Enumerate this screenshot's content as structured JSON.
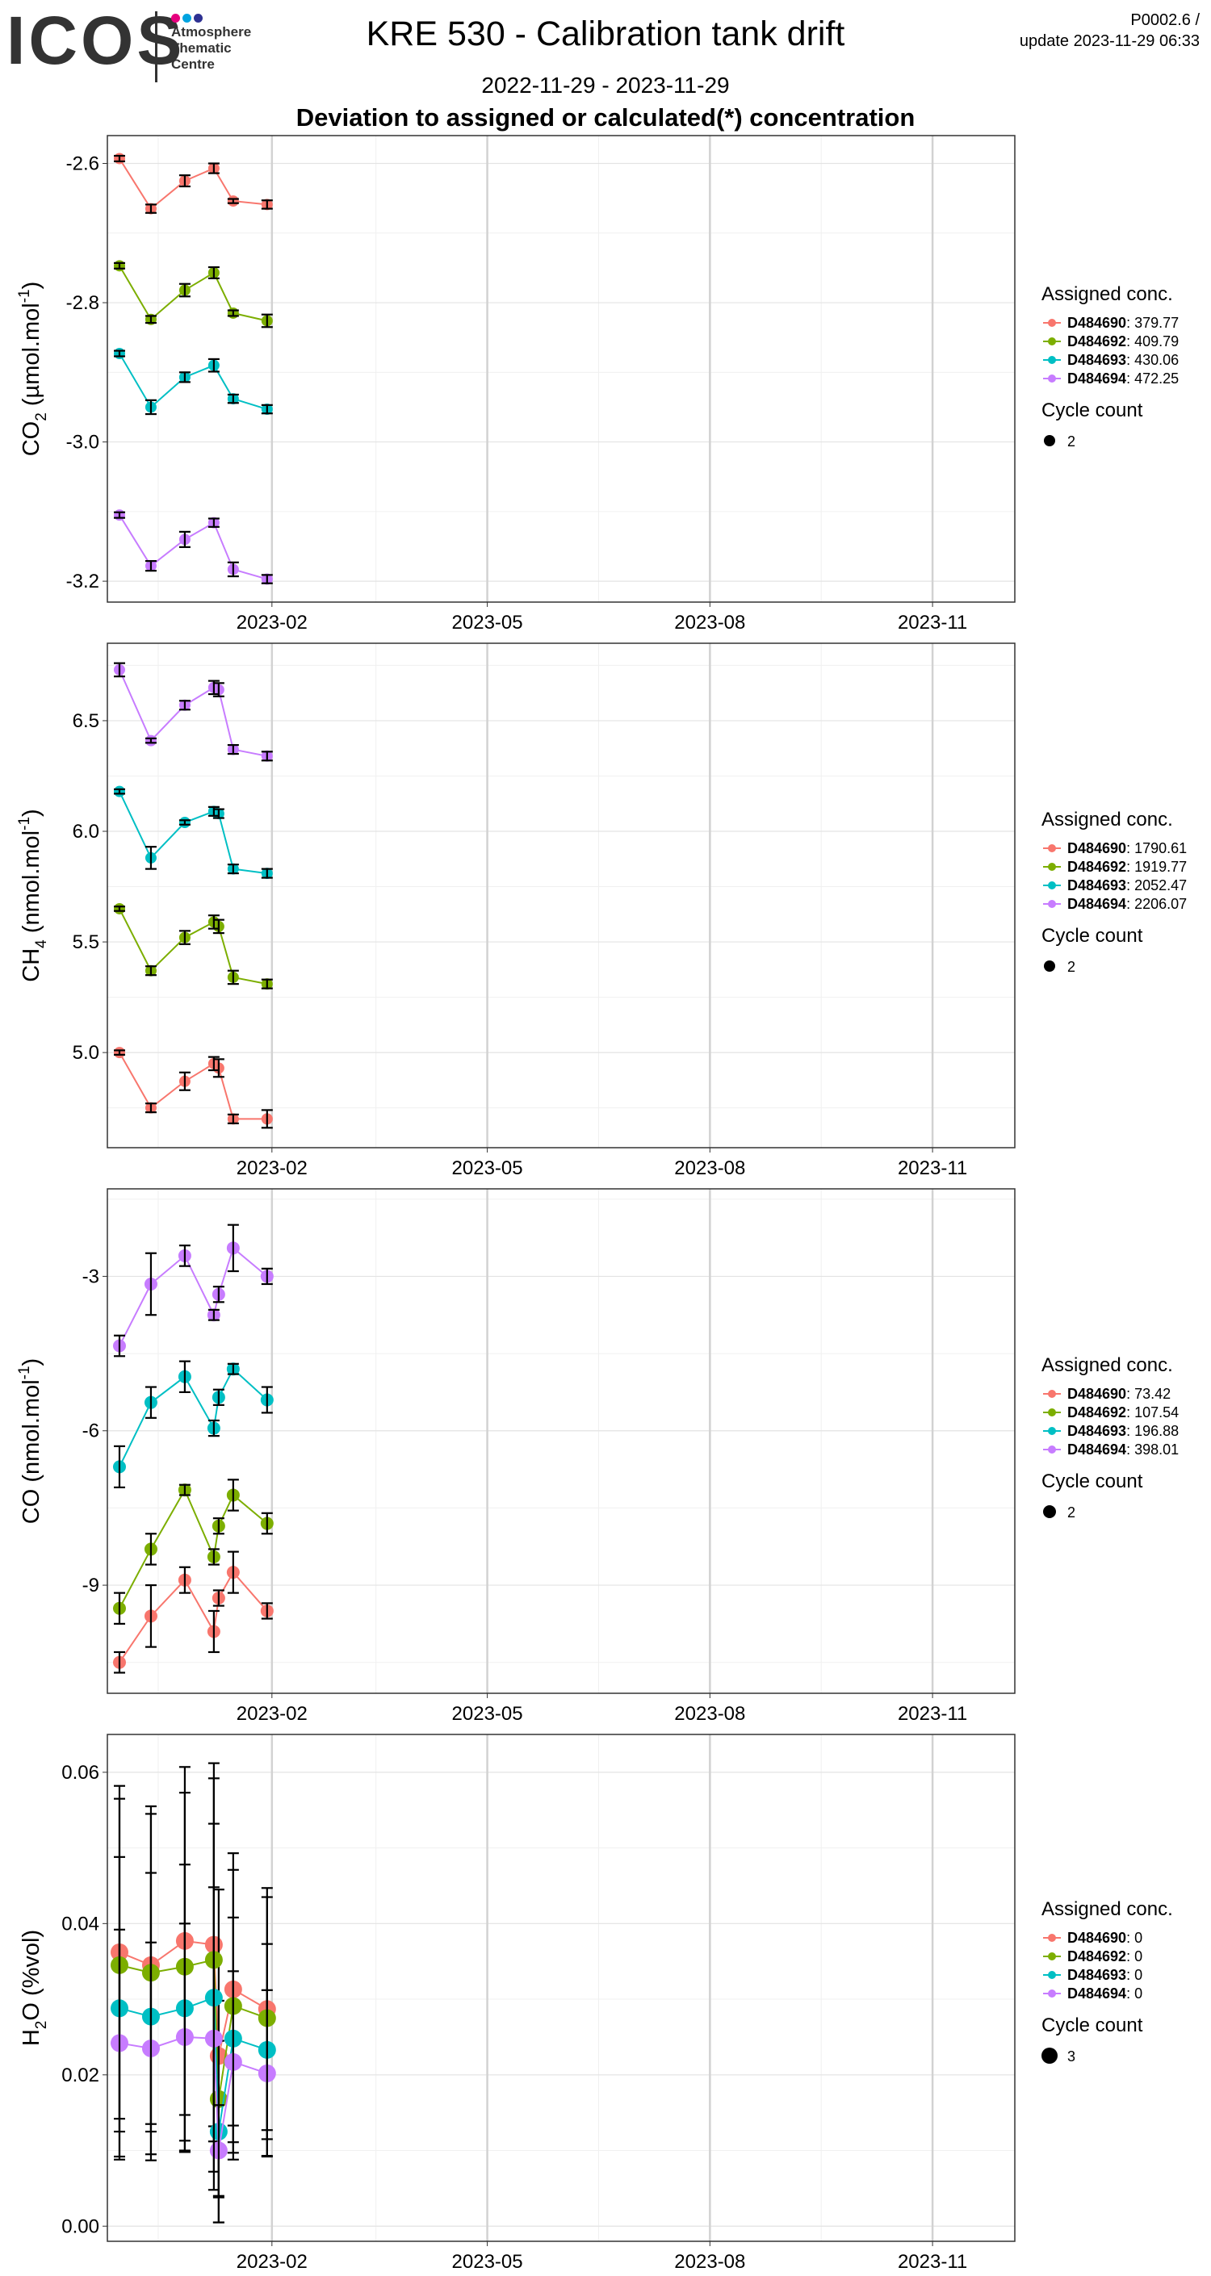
{
  "header": {
    "logo_text": "ICOS",
    "logo_sub": [
      "Atmosphere",
      "Thematic",
      "Centre"
    ],
    "version_line1": "P0002.6 /",
    "version_line2": "update  2023-11-29 06:33",
    "title": "KRE 530 - Calibration tank drift",
    "date_range": "2022-11-29 - 2023-11-29",
    "subtitle": "Deviation to assigned or calculated(*) concentration"
  },
  "colors": {
    "D484690": "#F8766D",
    "D484692": "#7CAE00",
    "D484693": "#00BFC4",
    "D484694": "#C77CFF",
    "logo_dots": [
      "#E6007E",
      "#00A3E0",
      "#2E3192"
    ]
  },
  "x_ticks": [
    "2023-02",
    "2023-05",
    "2023-08",
    "2023-11"
  ],
  "chart_data": [
    {
      "type": "line",
      "ylabel_main": "CO",
      "ylabel_sub": "2",
      "ylabel_unit": " (µmol.mol",
      "ylabel_sup": "-1",
      "ylabel_end": ")",
      "xlim": [
        "2022-11-25",
        "2023-12-05"
      ],
      "ylim": [
        -3.23,
        -2.56
      ],
      "y_ticks": [
        -3.2,
        -3.0,
        -2.8,
        -2.6
      ],
      "y_tick_labels": [
        "-3.2",
        "-3.0",
        "-2.8",
        "-2.6"
      ],
      "legend_title": "Assigned conc.",
      "cycle_title": "Cycle count",
      "cycle_value": "2",
      "series": [
        {
          "name": "D484690",
          "value": "379.77",
          "x": [
            "2022-11-30",
            "2022-12-13",
            "2022-12-27",
            "2023-01-08",
            "2023-01-16",
            "2023-01-30"
          ],
          "y": [
            -2.593,
            -2.665,
            -2.625,
            -2.607,
            -2.654,
            -2.659
          ],
          "err": [
            0.004,
            0.006,
            0.008,
            0.007,
            0.003,
            0.006
          ]
        },
        {
          "name": "D484692",
          "value": "409.79",
          "x": [
            "2022-11-30",
            "2022-12-13",
            "2022-12-27",
            "2023-01-08",
            "2023-01-16",
            "2023-01-30"
          ],
          "y": [
            -2.747,
            -2.824,
            -2.782,
            -2.757,
            -2.815,
            -2.826
          ],
          "err": [
            0.004,
            0.005,
            0.009,
            0.008,
            0.004,
            0.009
          ]
        },
        {
          "name": "D484693",
          "value": "430.06",
          "x": [
            "2022-11-30",
            "2022-12-13",
            "2022-12-27",
            "2023-01-08",
            "2023-01-16",
            "2023-01-30"
          ],
          "y": [
            -2.873,
            -2.95,
            -2.907,
            -2.89,
            -2.938,
            -2.953
          ],
          "err": [
            0.004,
            0.01,
            0.007,
            0.009,
            0.006,
            0.006
          ]
        },
        {
          "name": "D484694",
          "value": "472.25",
          "x": [
            "2022-11-30",
            "2022-12-13",
            "2022-12-27",
            "2023-01-08",
            "2023-01-16",
            "2023-01-30"
          ],
          "y": [
            -3.105,
            -3.178,
            -3.14,
            -3.116,
            -3.183,
            -3.197
          ],
          "err": [
            0.004,
            0.007,
            0.011,
            0.006,
            0.01,
            0.006
          ]
        }
      ]
    },
    {
      "type": "line",
      "ylabel_main": "CH",
      "ylabel_sub": "4",
      "ylabel_unit": " (nmol.mol",
      "ylabel_sup": "-1",
      "ylabel_end": ")",
      "xlim": [
        "2022-11-25",
        "2023-12-05"
      ],
      "ylim": [
        4.57,
        6.85
      ],
      "y_ticks": [
        5.0,
        5.5,
        6.0,
        6.5
      ],
      "y_tick_labels": [
        "5.0",
        "5.5",
        "6.0",
        "6.5"
      ],
      "legend_title": "Assigned conc.",
      "cycle_title": "Cycle count",
      "cycle_value": "2",
      "series": [
        {
          "name": "D484690",
          "value": "1790.61",
          "x": [
            "2022-11-30",
            "2022-12-13",
            "2022-12-27",
            "2023-01-08",
            "2023-01-10",
            "2023-01-16",
            "2023-01-30"
          ],
          "y": [
            5.0,
            4.75,
            4.87,
            4.95,
            4.93,
            4.7,
            4.7
          ],
          "err": [
            0.01,
            0.02,
            0.04,
            0.03,
            0.04,
            0.02,
            0.04
          ]
        },
        {
          "name": "D484692",
          "value": "1919.77",
          "x": [
            "2022-11-30",
            "2022-12-13",
            "2022-12-27",
            "2023-01-08",
            "2023-01-10",
            "2023-01-16",
            "2023-01-30"
          ],
          "y": [
            5.65,
            5.37,
            5.52,
            5.59,
            5.57,
            5.34,
            5.31
          ],
          "err": [
            0.01,
            0.02,
            0.03,
            0.03,
            0.03,
            0.03,
            0.02
          ]
        },
        {
          "name": "D484693",
          "value": "2052.47",
          "x": [
            "2022-11-30",
            "2022-12-13",
            "2022-12-27",
            "2023-01-08",
            "2023-01-10",
            "2023-01-16",
            "2023-01-30"
          ],
          "y": [
            6.18,
            5.88,
            6.04,
            6.09,
            6.08,
            5.83,
            5.81
          ],
          "err": [
            0.01,
            0.05,
            0.01,
            0.02,
            0.02,
            0.02,
            0.02
          ]
        },
        {
          "name": "D484694",
          "value": "2206.07",
          "x": [
            "2022-11-30",
            "2022-12-13",
            "2022-12-27",
            "2023-01-08",
            "2023-01-10",
            "2023-01-16",
            "2023-01-30"
          ],
          "y": [
            6.73,
            6.41,
            6.57,
            6.65,
            6.64,
            6.37,
            6.34
          ],
          "err": [
            0.03,
            0.01,
            0.02,
            0.03,
            0.03,
            0.02,
            0.02
          ]
        }
      ]
    },
    {
      "type": "line",
      "ylabel_main": "CO",
      "ylabel_sub": "",
      "ylabel_unit": " (nmol.mol",
      "ylabel_sup": "-1",
      "ylabel_end": ")",
      "xlim": [
        "2022-11-25",
        "2023-12-05"
      ],
      "ylim": [
        -11.1,
        -1.3
      ],
      "y_ticks": [
        -9,
        -6,
        -3
      ],
      "y_tick_labels": [
        "-9",
        "-6",
        "-3"
      ],
      "legend_title": "Assigned conc.",
      "cycle_title": "Cycle count",
      "cycle_value": "2",
      "series": [
        {
          "name": "D484690",
          "value": "73.42",
          "x": [
            "2022-11-30",
            "2022-12-13",
            "2022-12-27",
            "2023-01-08",
            "2023-01-10",
            "2023-01-16",
            "2023-01-30"
          ],
          "y": [
            -10.5,
            -9.6,
            -8.9,
            -9.9,
            -9.25,
            -8.75,
            -9.5
          ],
          "err": [
            0.2,
            0.6,
            0.25,
            0.4,
            0.15,
            0.4,
            0.15
          ]
        },
        {
          "name": "D484692",
          "value": "107.54",
          "x": [
            "2022-11-30",
            "2022-12-13",
            "2022-12-27",
            "2023-01-08",
            "2023-01-10",
            "2023-01-16",
            "2023-01-30"
          ],
          "y": [
            -9.45,
            -8.3,
            -7.15,
            -8.45,
            -7.85,
            -7.25,
            -7.8
          ],
          "err": [
            0.3,
            0.3,
            0.1,
            0.15,
            0.15,
            0.3,
            0.2
          ]
        },
        {
          "name": "D484693",
          "value": "196.88",
          "x": [
            "2022-11-30",
            "2022-12-13",
            "2022-12-27",
            "2023-01-08",
            "2023-01-10",
            "2023-01-16",
            "2023-01-30"
          ],
          "y": [
            -6.7,
            -5.45,
            -4.95,
            -5.95,
            -5.35,
            -4.8,
            -5.4
          ],
          "err": [
            0.4,
            0.3,
            0.3,
            0.15,
            0.15,
            0.1,
            0.25
          ]
        },
        {
          "name": "D484694",
          "value": "398.01",
          "x": [
            "2022-11-30",
            "2022-12-13",
            "2022-12-27",
            "2023-01-08",
            "2023-01-10",
            "2023-01-16",
            "2023-01-30"
          ],
          "y": [
            -4.35,
            -3.15,
            -2.6,
            -3.75,
            -3.35,
            -2.45,
            -3.0
          ],
          "err": [
            0.2,
            0.6,
            0.2,
            0.1,
            0.15,
            0.45,
            0.15
          ]
        }
      ]
    },
    {
      "type": "line",
      "ylabel_main": "H",
      "ylabel_sub": "2",
      "ylabel_unit": "O (%vol)",
      "ylabel_sup": "",
      "ylabel_end": "",
      "xlim": [
        "2022-11-25",
        "2023-12-05"
      ],
      "ylim": [
        -0.002,
        0.065
      ],
      "y_ticks": [
        0.0,
        0.02,
        0.04,
        0.06
      ],
      "y_tick_labels": [
        "0.00",
        "0.02",
        "0.04",
        "0.06"
      ],
      "legend_title": "Assigned conc.",
      "cycle_title": "Cycle count",
      "cycle_value": "3",
      "series": [
        {
          "name": "D484690",
          "value": "0",
          "x": [
            "2022-11-30",
            "2022-12-13",
            "2022-12-27",
            "2023-01-08",
            "2023-01-10",
            "2023-01-16",
            "2023-01-30"
          ],
          "y": [
            0.0362,
            0.0345,
            0.0377,
            0.0372,
            0.0225,
            0.0313,
            0.0287
          ],
          "err": [
            0.022,
            0.021,
            0.023,
            0.024,
            0.022,
            0.018,
            0.016
          ]
        },
        {
          "name": "D484692",
          "value": "0",
          "x": [
            "2022-11-30",
            "2022-12-13",
            "2022-12-27",
            "2023-01-08",
            "2023-01-10",
            "2023-01-16",
            "2023-01-30"
          ],
          "y": [
            0.0345,
            0.0335,
            0.0343,
            0.0352,
            0.0168,
            0.0291,
            0.0275
          ],
          "err": [
            0.022,
            0.021,
            0.023,
            0.024,
            0.013,
            0.018,
            0.016
          ]
        },
        {
          "name": "D484693",
          "value": "0",
          "x": [
            "2022-11-30",
            "2022-12-13",
            "2022-12-27",
            "2023-01-08",
            "2023-01-10",
            "2023-01-16",
            "2023-01-30"
          ],
          "y": [
            0.0288,
            0.0277,
            0.0288,
            0.0302,
            0.0125,
            0.0248,
            0.0233
          ],
          "err": [
            0.02,
            0.019,
            0.019,
            0.023,
            0.012,
            0.016,
            0.014
          ]
        },
        {
          "name": "D484694",
          "value": "0",
          "x": [
            "2022-11-30",
            "2022-12-13",
            "2022-12-27",
            "2023-01-08",
            "2023-01-10",
            "2023-01-16",
            "2023-01-30"
          ],
          "y": [
            0.0242,
            0.0235,
            0.025,
            0.0248,
            0.01,
            0.0217,
            0.0202
          ],
          "err": [
            0.015,
            0.014,
            0.015,
            0.02,
            0.006,
            0.012,
            0.011
          ]
        }
      ]
    }
  ]
}
